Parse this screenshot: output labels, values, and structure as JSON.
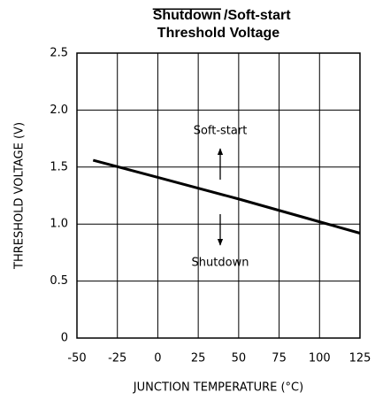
{
  "chart_data": {
    "type": "line",
    "title": [
      "Shutdown",
      "/Soft-start",
      "Threshold Voltage"
    ],
    "title_overline": [
      true,
      false,
      false
    ],
    "x_label": "JUNCTION TEMPERATURE (°C)",
    "y_label": "THRESHOLD VOLTAGE (V)",
    "x": [
      -40,
      0,
      50,
      100,
      125
    ],
    "series": [
      {
        "name": "Threshold",
        "color": "#000000",
        "values": [
          1.56,
          1.41,
          1.22,
          1.02,
          0.92
        ]
      }
    ],
    "xlim": [
      -50,
      125
    ],
    "xticks": [
      -50,
      -25,
      0,
      25,
      50,
      75,
      100,
      125
    ],
    "ylim": [
      0,
      2.5
    ],
    "yticks": [
      0,
      0.5,
      {
        "value": 1,
        "label": "1.0"
      },
      1.5,
      {
        "value": 2,
        "label": "2.0"
      },
      2.5
    ],
    "grid": true,
    "annotations": [
      "Soft-start",
      "Shutdown"
    ]
  }
}
